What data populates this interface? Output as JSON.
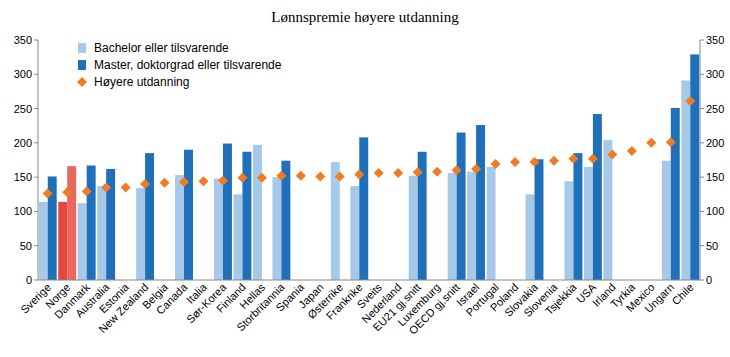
{
  "chart_data": {
    "type": "bar",
    "title": "Lønnspremie høyere utdanning",
    "categories": [
      "Sverige",
      "Norge",
      "Danmark",
      "Australia",
      "Estonia",
      "New Zealand",
      "Belgia",
      "Canada",
      "Italia",
      "Sør-Korea",
      "Finland",
      "Hellas",
      "Storbritannia",
      "Spania",
      "Japan",
      "Østerrike",
      "Frankrike",
      "Sveits",
      "Nederland",
      "EU21 gj.snitt",
      "Luxemburg",
      "OECD gj.snitt",
      "Israel",
      "Portugal",
      "Poland",
      "Slovakia",
      "Slovenia",
      "Tsjekkia",
      "USA",
      "Irland",
      "Tyrkia",
      "Mexico",
      "Ungarn",
      "Chile"
    ],
    "series": [
      {
        "name": "Bachelor eller tilsvarende",
        "type": "bar",
        "color": "#a7c9e9",
        "colors": [
          "#a7c9e9",
          "#e2483b",
          "#a7c9e9",
          "#a7c9e9",
          "#a7c9e9",
          "#a7c9e9",
          "#a7c9e9",
          "#a7c9e9",
          "#a7c9e9",
          "#a7c9e9",
          "#a7c9e9",
          "#a7c9e9",
          "#a7c9e9",
          "#a7c9e9",
          "#a7c9e9",
          "#a7c9e9",
          "#a7c9e9",
          "#a7c9e9",
          "#a7c9e9",
          "#a7c9e9",
          "#a7c9e9",
          "#a7c9e9",
          "#a7c9e9",
          "#a7c9e9",
          "#a7c9e9",
          "#a7c9e9",
          "#a7c9e9",
          "#a7c9e9",
          "#a7c9e9",
          "#a7c9e9",
          "#a7c9e9",
          "#a7c9e9",
          "#a7c9e9",
          "#a7c9e9"
        ],
        "values": [
          114,
          114,
          112,
          137,
          null,
          134,
          null,
          153,
          null,
          148,
          125,
          197,
          150,
          null,
          null,
          172,
          137,
          null,
          null,
          152,
          null,
          156,
          158,
          165,
          null,
          125,
          null,
          144,
          165,
          204,
          null,
          null,
          174,
          291
        ]
      },
      {
        "name": "Master, doktorgrad eller tilsvarende",
        "type": "bar",
        "color": "#1f70b8",
        "colors": [
          "#1f70b8",
          "#e8695c",
          "#1f70b8",
          "#1f70b8",
          "#1f70b8",
          "#1f70b8",
          "#1f70b8",
          "#1f70b8",
          "#1f70b8",
          "#1f70b8",
          "#1f70b8",
          "#1f70b8",
          "#1f70b8",
          "#1f70b8",
          "#1f70b8",
          "#1f70b8",
          "#1f70b8",
          "#1f70b8",
          "#1f70b8",
          "#1f70b8",
          "#1f70b8",
          "#1f70b8",
          "#1f70b8",
          "#1f70b8",
          "#1f70b8",
          "#1f70b8",
          "#1f70b8",
          "#1f70b8",
          "#1f70b8",
          "#1f70b8",
          "#1f70b8",
          "#1f70b8",
          "#1f70b8",
          "#1f70b8"
        ],
        "values": [
          151,
          166,
          167,
          162,
          null,
          185,
          null,
          190,
          null,
          199,
          187,
          null,
          174,
          null,
          null,
          null,
          208,
          null,
          null,
          187,
          null,
          215,
          226,
          null,
          null,
          176,
          null,
          185,
          242,
          null,
          null,
          null,
          251,
          329
        ]
      },
      {
        "name": "Høyere utdanning",
        "type": "scatter",
        "marker": "diamond",
        "color": "#f07b22",
        "values": [
          126,
          128,
          129,
          135,
          135,
          140,
          142,
          143,
          144,
          145,
          149,
          149,
          152,
          152,
          151,
          151,
          154,
          156,
          156,
          157,
          158,
          160,
          162,
          169,
          172,
          172,
          174,
          177,
          177,
          183,
          188,
          200,
          201,
          261
        ]
      }
    ],
    "ylim": [
      0,
      350
    ],
    "yticks": [
      0,
      50,
      100,
      150,
      200,
      250,
      300,
      350
    ],
    "y2lim": [
      0,
      350
    ],
    "y2ticks": [
      0,
      50,
      100,
      150,
      200,
      250,
      300,
      350
    ],
    "grid": false,
    "legend": "upper left"
  }
}
